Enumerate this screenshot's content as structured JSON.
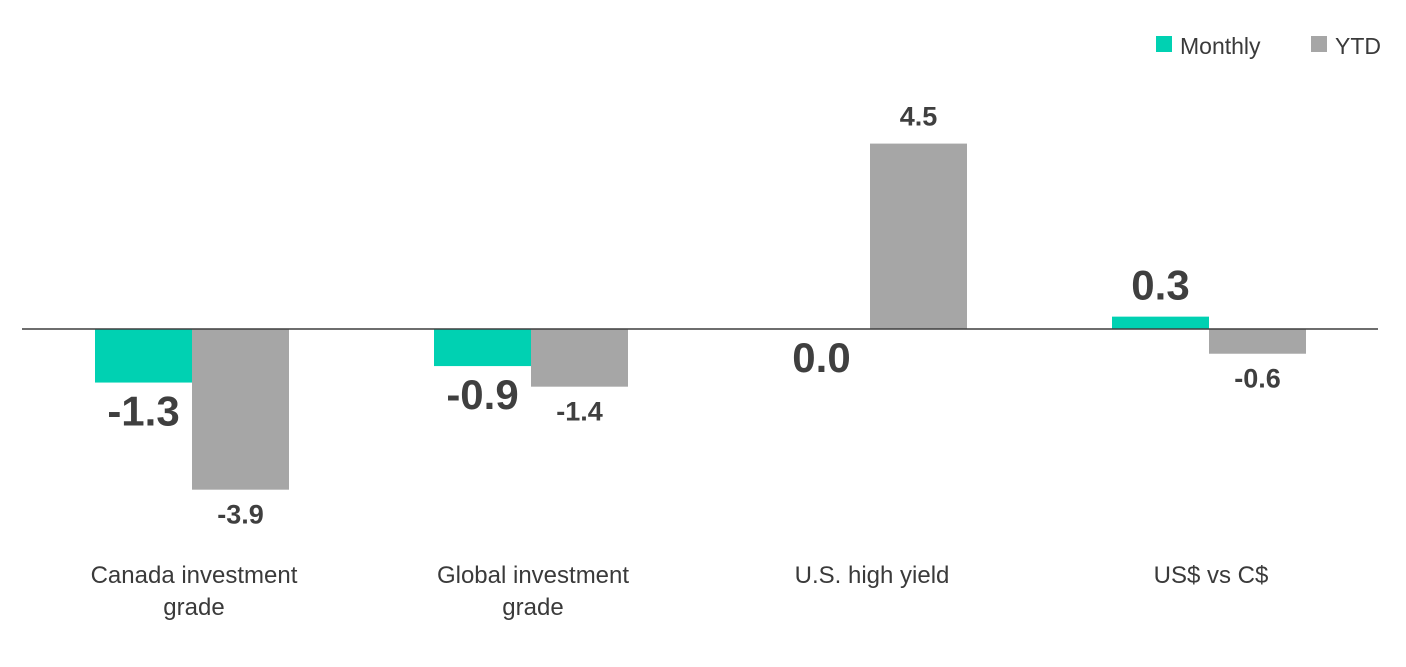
{
  "chart_data": {
    "type": "bar",
    "categories": [
      [
        "Canada investment",
        "grade"
      ],
      [
        "Global investment",
        "grade"
      ],
      [
        "U.S. high yield"
      ],
      [
        "US$ vs C$"
      ]
    ],
    "series": [
      {
        "name": "Monthly",
        "color": "#00d1b2",
        "values": [
          -1.3,
          -0.9,
          0.0,
          0.3
        ],
        "labels": [
          "-1.3",
          "-0.9",
          "0.0",
          "0.3"
        ]
      },
      {
        "name": "YTD",
        "color": "#a6a6a6",
        "values": [
          -3.9,
          -1.4,
          4.5,
          -0.6
        ],
        "labels": [
          "-3.9",
          "-1.4",
          "4.5",
          "-0.6"
        ]
      }
    ],
    "title": "",
    "xlabel": "",
    "ylabel": "",
    "ylim": [
      -3.9,
      4.5
    ],
    "grid": false,
    "legend_position": "top-right",
    "colors": {
      "axis": "#3f3f3f",
      "text": "#3a3a3a"
    }
  }
}
